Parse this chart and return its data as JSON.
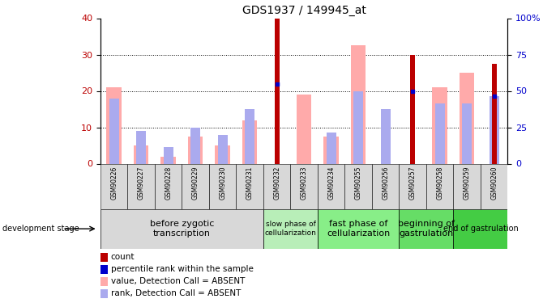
{
  "title": "GDS1937 / 149945_at",
  "samples": [
    "GSM90226",
    "GSM90227",
    "GSM90228",
    "GSM90229",
    "GSM90230",
    "GSM90231",
    "GSM90232",
    "GSM90233",
    "GSM90234",
    "GSM90255",
    "GSM90256",
    "GSM90257",
    "GSM90258",
    "GSM90259",
    "GSM90260"
  ],
  "count_values": [
    0,
    0,
    0,
    0,
    0,
    0,
    40,
    0,
    0,
    0,
    0,
    30,
    0,
    0,
    27.5
  ],
  "value_absent": [
    21,
    5,
    2,
    7.5,
    5,
    12,
    0,
    19,
    7.5,
    32.5,
    0,
    0,
    21,
    25,
    0
  ],
  "rank_absent": [
    18,
    9,
    4.5,
    10,
    8,
    15,
    0,
    0,
    8.5,
    20,
    15,
    0,
    16.5,
    16.5,
    18.5
  ],
  "percentile_rank": [
    0,
    0,
    0,
    0,
    0,
    0,
    22,
    0,
    0,
    0,
    0,
    20,
    0,
    0,
    18.5
  ],
  "has_percentile": [
    false,
    false,
    false,
    false,
    false,
    false,
    true,
    false,
    false,
    false,
    false,
    true,
    false,
    false,
    true
  ],
  "ylim_left": [
    0,
    40
  ],
  "ylim_right": [
    0,
    100
  ],
  "stages": [
    {
      "label": "before zygotic\ntranscription",
      "start": 0,
      "end": 6,
      "color": "#d8d8d8"
    },
    {
      "label": "slow phase of\ncellularization",
      "start": 6,
      "end": 8,
      "color": "#b8eeb8"
    },
    {
      "label": "fast phase of\ncellularization",
      "start": 8,
      "end": 11,
      "color": "#88ee88"
    },
    {
      "label": "beginning of\ngastrulation",
      "start": 11,
      "end": 13,
      "color": "#66dd66"
    },
    {
      "label": "end of gastrulation",
      "start": 13,
      "end": 15,
      "color": "#44cc44"
    }
  ],
  "count_color": "#bb0000",
  "value_absent_color": "#ffaaaa",
  "rank_absent_color": "#aaaaee",
  "percentile_color": "#0000cc",
  "right_axis_color": "#0000cc",
  "left_yticks": [
    0,
    10,
    20,
    30,
    40
  ],
  "right_yticks": [
    0,
    25,
    50,
    75,
    100
  ],
  "right_yticklabels": [
    "0",
    "25",
    "50",
    "75",
    "100%"
  ],
  "legend_items": [
    {
      "color": "#bb0000",
      "label": "count"
    },
    {
      "color": "#0000cc",
      "label": "percentile rank within the sample"
    },
    {
      "color": "#ffaaaa",
      "label": "value, Detection Call = ABSENT"
    },
    {
      "color": "#aaaaee",
      "label": "rank, Detection Call = ABSENT"
    }
  ]
}
